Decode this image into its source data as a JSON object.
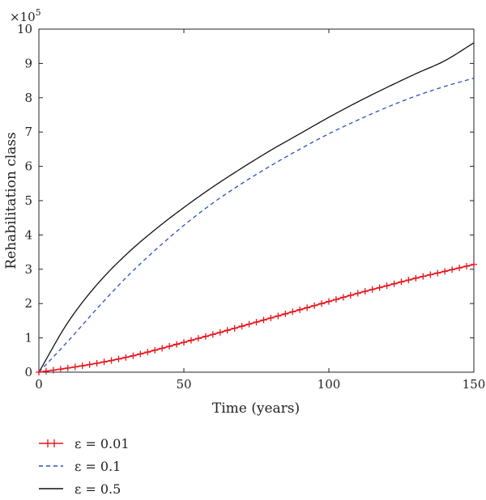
{
  "chart_data": {
    "type": "line",
    "xlabel": "Time (years)",
    "ylabel": "Rehabilitation class",
    "y_multiplier_base": "×10",
    "y_multiplier_exp": "5",
    "xlim": [
      0,
      150
    ],
    "ylim": [
      0,
      10
    ],
    "x_ticks": [
      "0",
      "50",
      "100",
      "150"
    ],
    "y_ticks": [
      "0",
      "1",
      "2",
      "3",
      "4",
      "5",
      "6",
      "7",
      "8",
      "9",
      "10"
    ],
    "grid": false,
    "legend_position": "bottom-left, below plot",
    "x": [
      0,
      10,
      20,
      30,
      40,
      50,
      60,
      70,
      80,
      90,
      100,
      110,
      120,
      130,
      140,
      150
    ],
    "series": [
      {
        "name": "ε = 0.01",
        "color": "#e8141c",
        "style": "solid-plus-markers",
        "values": [
          0,
          0.12,
          0.26,
          0.43,
          0.64,
          0.87,
          1.1,
          1.34,
          1.58,
          1.82,
          2.06,
          2.3,
          2.52,
          2.74,
          2.94,
          3.14
        ]
      },
      {
        "name": "ε = 0.1",
        "color": "#2a4fb8",
        "style": "dashed",
        "values": [
          0,
          0.9,
          1.85,
          2.75,
          3.55,
          4.28,
          4.93,
          5.5,
          6.02,
          6.5,
          6.95,
          7.35,
          7.72,
          8.05,
          8.33,
          8.57
        ]
      },
      {
        "name": "ε = 0.5",
        "color": "#111111",
        "style": "solid",
        "values": [
          0,
          1.45,
          2.55,
          3.42,
          4.15,
          4.8,
          5.4,
          5.95,
          6.47,
          6.95,
          7.43,
          7.88,
          8.3,
          8.7,
          9.08,
          9.6
        ]
      }
    ]
  }
}
